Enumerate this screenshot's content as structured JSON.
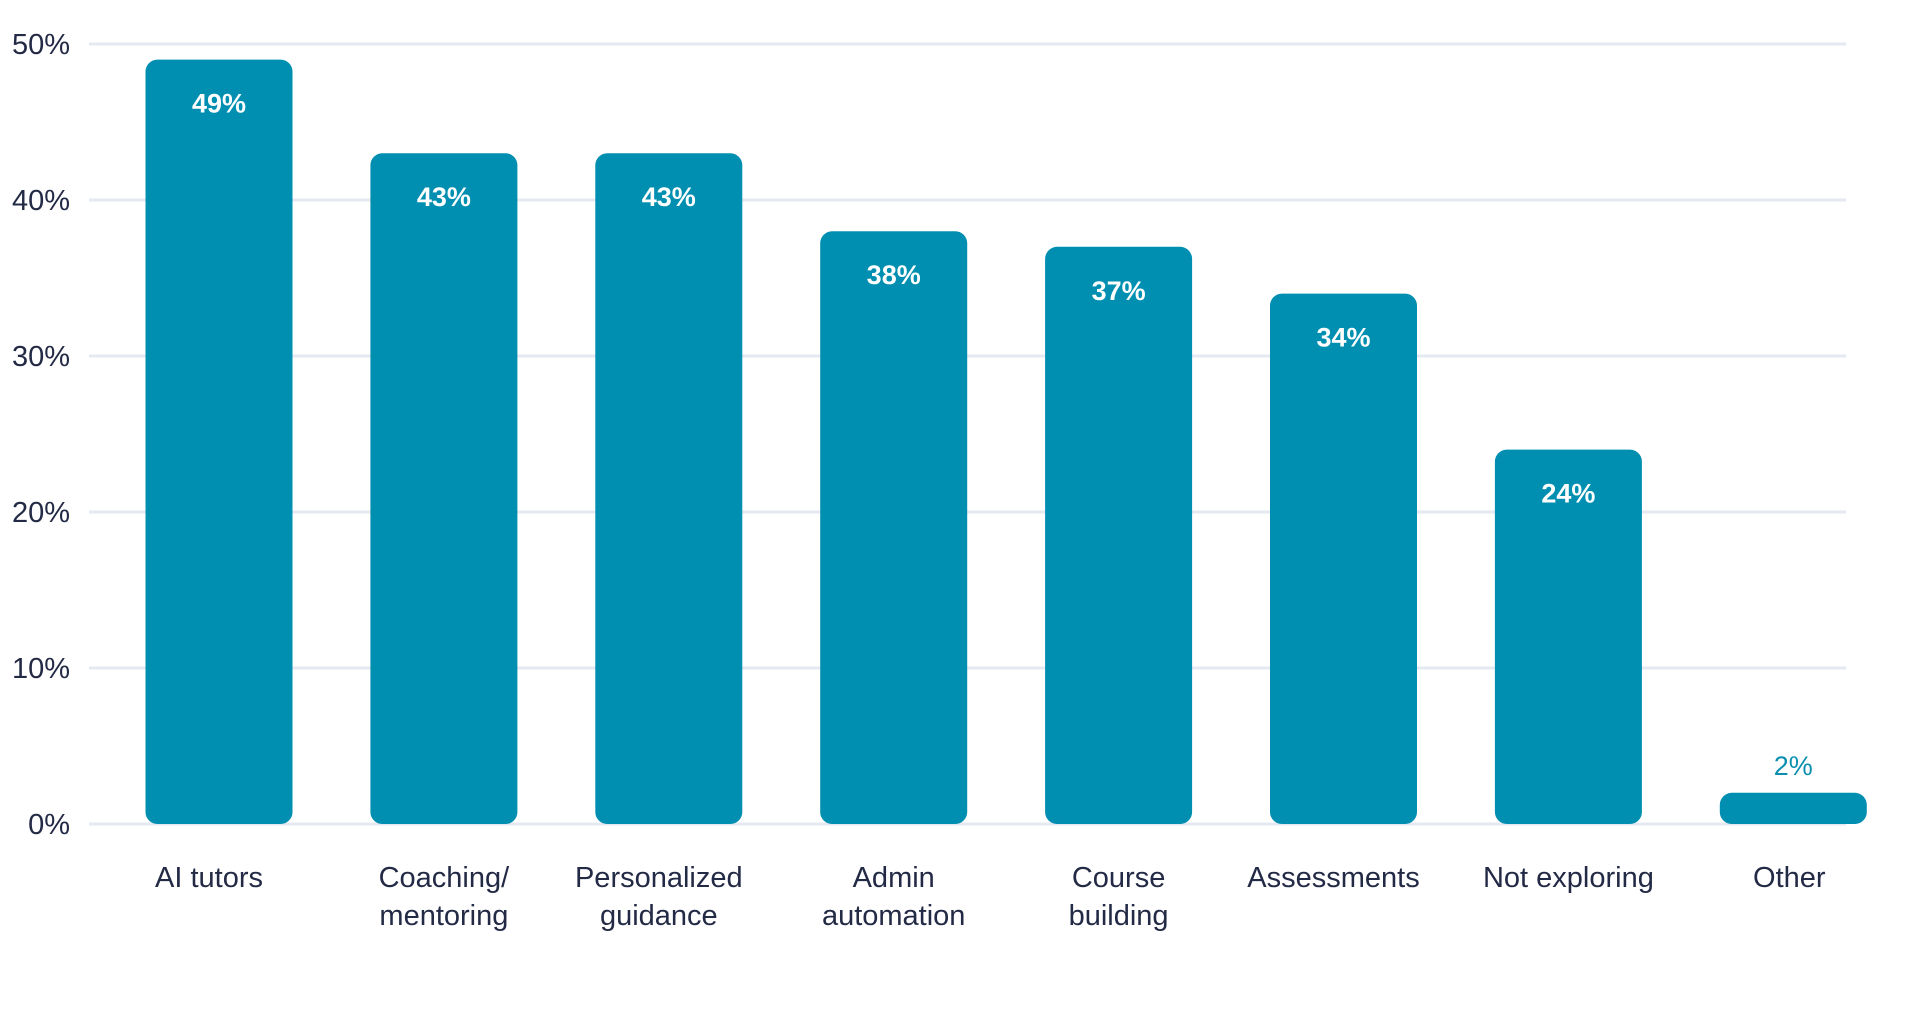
{
  "chart_data": {
    "type": "bar",
    "title": "",
    "xlabel": "",
    "ylabel": "",
    "categories": [
      [
        "AI tutors"
      ],
      [
        "Coaching/",
        "mentoring"
      ],
      [
        "Personalized",
        "guidance"
      ],
      [
        "Admin",
        "automation"
      ],
      [
        "Course",
        "building"
      ],
      [
        "Assessments"
      ],
      [
        "Not exploring"
      ],
      [
        "Other"
      ]
    ],
    "values": [
      49,
      43,
      43,
      38,
      37,
      34,
      24,
      2
    ],
    "value_labels": [
      "49%",
      "43%",
      "43%",
      "38%",
      "37%",
      "34%",
      "24%",
      "2%"
    ],
    "ylim": [
      0,
      50
    ],
    "yticks": [
      0,
      10,
      20,
      30,
      40,
      50
    ],
    "ytick_labels": [
      "0%",
      "10%",
      "20%",
      "30%",
      "40%",
      "50%"
    ],
    "grid": true,
    "legend": "none",
    "colors": {
      "bar": "#008fb0",
      "text": "#232a45",
      "grid": "#e5e9f2"
    }
  }
}
